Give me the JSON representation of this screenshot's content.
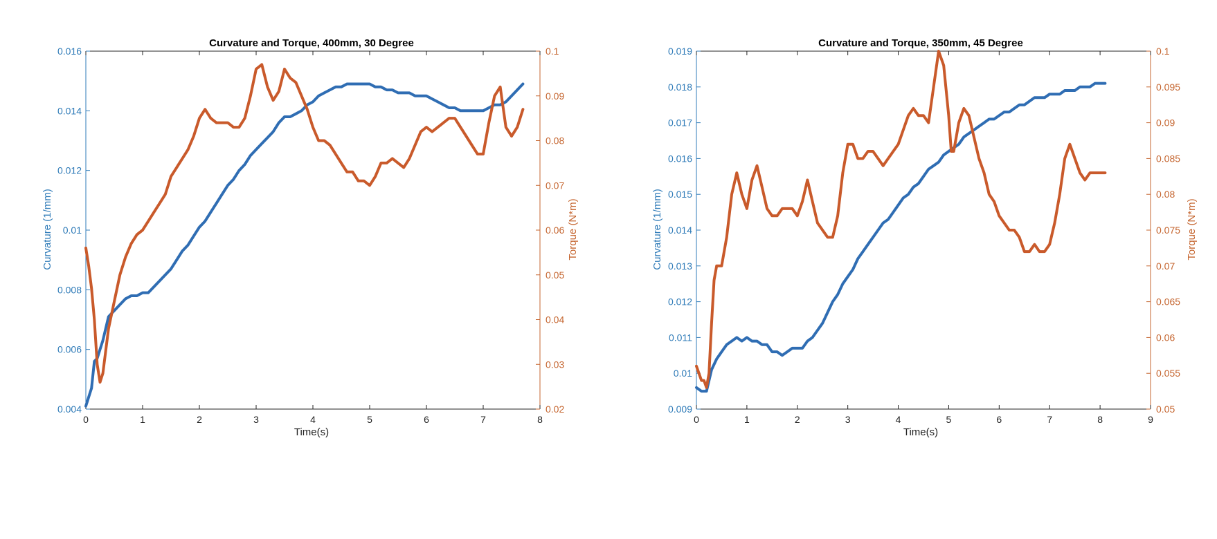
{
  "colors": {
    "curvature": "#2f6db3",
    "torque": "#c95a2b",
    "curvature_axis": "#2f7bb8",
    "torque_axis": "#c5652f",
    "x_axis": "#222222"
  },
  "chart_data": [
    {
      "type": "line",
      "title": "Curvature and Torque, 400mm, 30 Degree",
      "xlabel": "Time(s)",
      "ylabel_left": "Curvature (1/mm)",
      "ylabel_right": "Torque (N*m)",
      "xlim": [
        0,
        8
      ],
      "ylim_left": [
        0.004,
        0.016
      ],
      "ylim_right": [
        0.02,
        0.1
      ],
      "x_ticks": [
        "0",
        "1",
        "2",
        "3",
        "4",
        "5",
        "6",
        "7",
        "8"
      ],
      "y_ticks_left": [
        "0.004",
        "0.006",
        "0.008",
        "0.01",
        "0.012",
        "0.014",
        "0.016"
      ],
      "y_ticks_right": [
        "0.02",
        "0.03",
        "0.04",
        "0.05",
        "0.06",
        "0.07",
        "0.08",
        "0.09",
        "0.1"
      ],
      "grid": false,
      "series": [
        {
          "axis": "left",
          "color_key": "curvature",
          "x": [
            0,
            0.05,
            0.1,
            0.15,
            0.2,
            0.3,
            0.35,
            0.4,
            0.45,
            0.5,
            0.6,
            0.7,
            0.8,
            0.9,
            1.0,
            1.1,
            1.2,
            1.3,
            1.4,
            1.5,
            1.6,
            1.7,
            1.8,
            1.9,
            2.0,
            2.1,
            2.2,
            2.3,
            2.4,
            2.5,
            2.6,
            2.7,
            2.8,
            2.9,
            3.0,
            3.1,
            3.2,
            3.3,
            3.4,
            3.5,
            3.6,
            3.7,
            3.8,
            3.9,
            4.0,
            4.1,
            4.2,
            4.3,
            4.4,
            4.5,
            4.6,
            4.7,
            4.8,
            4.9,
            5.0,
            5.1,
            5.2,
            5.3,
            5.4,
            5.5,
            5.6,
            5.7,
            5.8,
            5.9,
            6.0,
            6.1,
            6.2,
            6.3,
            6.4,
            6.5,
            6.6,
            6.7,
            6.8,
            6.9,
            7.0,
            7.1,
            7.2,
            7.3,
            7.4,
            7.5,
            7.6,
            7.7
          ],
          "values": [
            0.0041,
            0.0044,
            0.0047,
            0.0056,
            0.0057,
            0.0063,
            0.0067,
            0.0071,
            0.0072,
            0.0073,
            0.0075,
            0.0077,
            0.0078,
            0.0078,
            0.0079,
            0.0079,
            0.0081,
            0.0083,
            0.0085,
            0.0087,
            0.009,
            0.0093,
            0.0095,
            0.0098,
            0.0101,
            0.0103,
            0.0106,
            0.0109,
            0.0112,
            0.0115,
            0.0117,
            0.012,
            0.0122,
            0.0125,
            0.0127,
            0.0129,
            0.0131,
            0.0133,
            0.0136,
            0.0138,
            0.0138,
            0.0139,
            0.014,
            0.0142,
            0.0143,
            0.0145,
            0.0146,
            0.0147,
            0.0148,
            0.0148,
            0.0149,
            0.0149,
            0.0149,
            0.0149,
            0.0149,
            0.0148,
            0.0148,
            0.0147,
            0.0147,
            0.0146,
            0.0146,
            0.0146,
            0.0145,
            0.0145,
            0.0145,
            0.0144,
            0.0143,
            0.0142,
            0.0141,
            0.0141,
            0.014,
            0.014,
            0.014,
            0.014,
            0.014,
            0.0141,
            0.0142,
            0.0142,
            0.0143,
            0.0145,
            0.0147,
            0.0149
          ]
        },
        {
          "axis": "right",
          "color_key": "torque",
          "x": [
            0,
            0.05,
            0.1,
            0.15,
            0.2,
            0.25,
            0.3,
            0.35,
            0.4,
            0.5,
            0.6,
            0.7,
            0.8,
            0.9,
            1.0,
            1.1,
            1.2,
            1.3,
            1.4,
            1.5,
            1.6,
            1.7,
            1.8,
            1.9,
            2.0,
            2.1,
            2.2,
            2.3,
            2.4,
            2.5,
            2.6,
            2.7,
            2.8,
            2.9,
            3.0,
            3.1,
            3.2,
            3.3,
            3.4,
            3.5,
            3.6,
            3.7,
            3.8,
            3.9,
            4.0,
            4.1,
            4.2,
            4.3,
            4.4,
            4.5,
            4.6,
            4.7,
            4.8,
            4.9,
            5.0,
            5.1,
            5.2,
            5.3,
            5.4,
            5.5,
            5.6,
            5.7,
            5.8,
            5.9,
            6.0,
            6.1,
            6.2,
            6.3,
            6.4,
            6.5,
            6.6,
            6.7,
            6.8,
            6.9,
            7.0,
            7.1,
            7.2,
            7.3,
            7.4,
            7.5,
            7.6,
            7.7
          ],
          "values": [
            0.056,
            0.052,
            0.047,
            0.04,
            0.03,
            0.026,
            0.028,
            0.033,
            0.038,
            0.044,
            0.05,
            0.054,
            0.057,
            0.059,
            0.06,
            0.062,
            0.064,
            0.066,
            0.068,
            0.072,
            0.074,
            0.076,
            0.078,
            0.081,
            0.085,
            0.087,
            0.085,
            0.084,
            0.084,
            0.084,
            0.083,
            0.083,
            0.085,
            0.09,
            0.096,
            0.097,
            0.092,
            0.089,
            0.091,
            0.096,
            0.094,
            0.093,
            0.09,
            0.087,
            0.083,
            0.08,
            0.08,
            0.079,
            0.077,
            0.075,
            0.073,
            0.073,
            0.071,
            0.071,
            0.07,
            0.072,
            0.075,
            0.075,
            0.076,
            0.075,
            0.074,
            0.076,
            0.079,
            0.082,
            0.083,
            0.082,
            0.083,
            0.084,
            0.085,
            0.085,
            0.083,
            0.081,
            0.079,
            0.077,
            0.077,
            0.084,
            0.09,
            0.092,
            0.083,
            0.081,
            0.083,
            0.087
          ]
        }
      ]
    },
    {
      "type": "line",
      "title": "Curvature and Torque, 350mm, 45 Degree",
      "xlabel": "Time(s)",
      "ylabel_left": "Curvature (1/mm)",
      "ylabel_right": "Torque (N*m)",
      "xlim": [
        0,
        9
      ],
      "ylim_left": [
        0.009,
        0.019
      ],
      "ylim_right": [
        0.05,
        0.1
      ],
      "x_ticks": [
        "0",
        "1",
        "2",
        "3",
        "4",
        "5",
        "6",
        "7",
        "8",
        "9"
      ],
      "y_ticks_left": [
        "0.009",
        "0.01",
        "0.011",
        "0.012",
        "0.013",
        "0.014",
        "0.015",
        "0.016",
        "0.017",
        "0.018",
        "0.019"
      ],
      "y_ticks_right": [
        "0.05",
        "0.055",
        "0.06",
        "0.065",
        "0.07",
        "0.075",
        "0.08",
        "0.085",
        "0.09",
        "0.095",
        "0.1"
      ],
      "grid": false,
      "series": [
        {
          "axis": "left",
          "color_key": "curvature",
          "x": [
            0,
            0.1,
            0.2,
            0.3,
            0.4,
            0.5,
            0.6,
            0.7,
            0.8,
            0.9,
            1.0,
            1.1,
            1.2,
            1.3,
            1.4,
            1.5,
            1.6,
            1.7,
            1.8,
            1.9,
            2.0,
            2.1,
            2.2,
            2.3,
            2.4,
            2.5,
            2.6,
            2.7,
            2.8,
            2.9,
            3.0,
            3.1,
            3.2,
            3.3,
            3.4,
            3.5,
            3.6,
            3.7,
            3.8,
            3.9,
            4.0,
            4.1,
            4.2,
            4.3,
            4.4,
            4.5,
            4.6,
            4.7,
            4.8,
            4.9,
            5.0,
            5.1,
            5.2,
            5.3,
            5.4,
            5.5,
            5.6,
            5.7,
            5.8,
            5.9,
            6.0,
            6.1,
            6.2,
            6.3,
            6.4,
            6.5,
            6.6,
            6.7,
            6.8,
            6.9,
            7.0,
            7.1,
            7.2,
            7.3,
            7.4,
            7.5,
            7.6,
            7.7,
            7.8,
            7.9,
            8.0,
            8.1
          ],
          "values": [
            0.0096,
            0.0095,
            0.0095,
            0.0101,
            0.0104,
            0.0106,
            0.0108,
            0.0109,
            0.011,
            0.0109,
            0.011,
            0.0109,
            0.0109,
            0.0108,
            0.0108,
            0.0106,
            0.0106,
            0.0105,
            0.0106,
            0.0107,
            0.0107,
            0.0107,
            0.0109,
            0.011,
            0.0112,
            0.0114,
            0.0117,
            0.012,
            0.0122,
            0.0125,
            0.0127,
            0.0129,
            0.0132,
            0.0134,
            0.0136,
            0.0138,
            0.014,
            0.0142,
            0.0143,
            0.0145,
            0.0147,
            0.0149,
            0.015,
            0.0152,
            0.0153,
            0.0155,
            0.0157,
            0.0158,
            0.0159,
            0.0161,
            0.0162,
            0.0163,
            0.0164,
            0.0166,
            0.0167,
            0.0168,
            0.0169,
            0.017,
            0.0171,
            0.0171,
            0.0172,
            0.0173,
            0.0173,
            0.0174,
            0.0175,
            0.0175,
            0.0176,
            0.0177,
            0.0177,
            0.0177,
            0.0178,
            0.0178,
            0.0178,
            0.0179,
            0.0179,
            0.0179,
            0.018,
            0.018,
            0.018,
            0.0181,
            0.0181,
            0.0181
          ]
        },
        {
          "axis": "right",
          "color_key": "torque",
          "x": [
            0,
            0.05,
            0.1,
            0.15,
            0.2,
            0.25,
            0.3,
            0.35,
            0.4,
            0.5,
            0.6,
            0.7,
            0.8,
            0.9,
            1.0,
            1.1,
            1.2,
            1.3,
            1.4,
            1.5,
            1.6,
            1.7,
            1.8,
            1.9,
            2.0,
            2.1,
            2.2,
            2.3,
            2.4,
            2.5,
            2.6,
            2.7,
            2.8,
            2.9,
            3.0,
            3.1,
            3.2,
            3.3,
            3.4,
            3.5,
            3.6,
            3.7,
            3.8,
            3.9,
            4.0,
            4.1,
            4.2,
            4.3,
            4.4,
            4.5,
            4.6,
            4.7,
            4.8,
            4.9,
            5.0,
            5.05,
            5.1,
            5.2,
            5.3,
            5.4,
            5.5,
            5.6,
            5.7,
            5.8,
            5.9,
            6.0,
            6.1,
            6.2,
            6.3,
            6.4,
            6.5,
            6.6,
            6.7,
            6.8,
            6.9,
            7.0,
            7.1,
            7.2,
            7.3,
            7.4,
            7.5,
            7.6,
            7.7,
            7.8,
            7.9,
            8.0,
            8.1
          ],
          "values": [
            0.056,
            0.055,
            0.054,
            0.054,
            0.053,
            0.055,
            0.062,
            0.068,
            0.07,
            0.07,
            0.074,
            0.08,
            0.083,
            0.08,
            0.078,
            0.082,
            0.084,
            0.081,
            0.078,
            0.077,
            0.077,
            0.078,
            0.078,
            0.078,
            0.077,
            0.079,
            0.082,
            0.079,
            0.076,
            0.075,
            0.074,
            0.074,
            0.077,
            0.083,
            0.087,
            0.087,
            0.085,
            0.085,
            0.086,
            0.086,
            0.085,
            0.084,
            0.085,
            0.086,
            0.087,
            0.089,
            0.091,
            0.092,
            0.091,
            0.091,
            0.09,
            0.095,
            0.1,
            0.098,
            0.091,
            0.086,
            0.086,
            0.09,
            0.092,
            0.091,
            0.088,
            0.085,
            0.083,
            0.08,
            0.079,
            0.077,
            0.076,
            0.075,
            0.075,
            0.074,
            0.072,
            0.072,
            0.073,
            0.072,
            0.072,
            0.073,
            0.076,
            0.08,
            0.085,
            0.087,
            0.085,
            0.083,
            0.082,
            0.083,
            0.083,
            0.083,
            0.083
          ]
        }
      ]
    }
  ]
}
